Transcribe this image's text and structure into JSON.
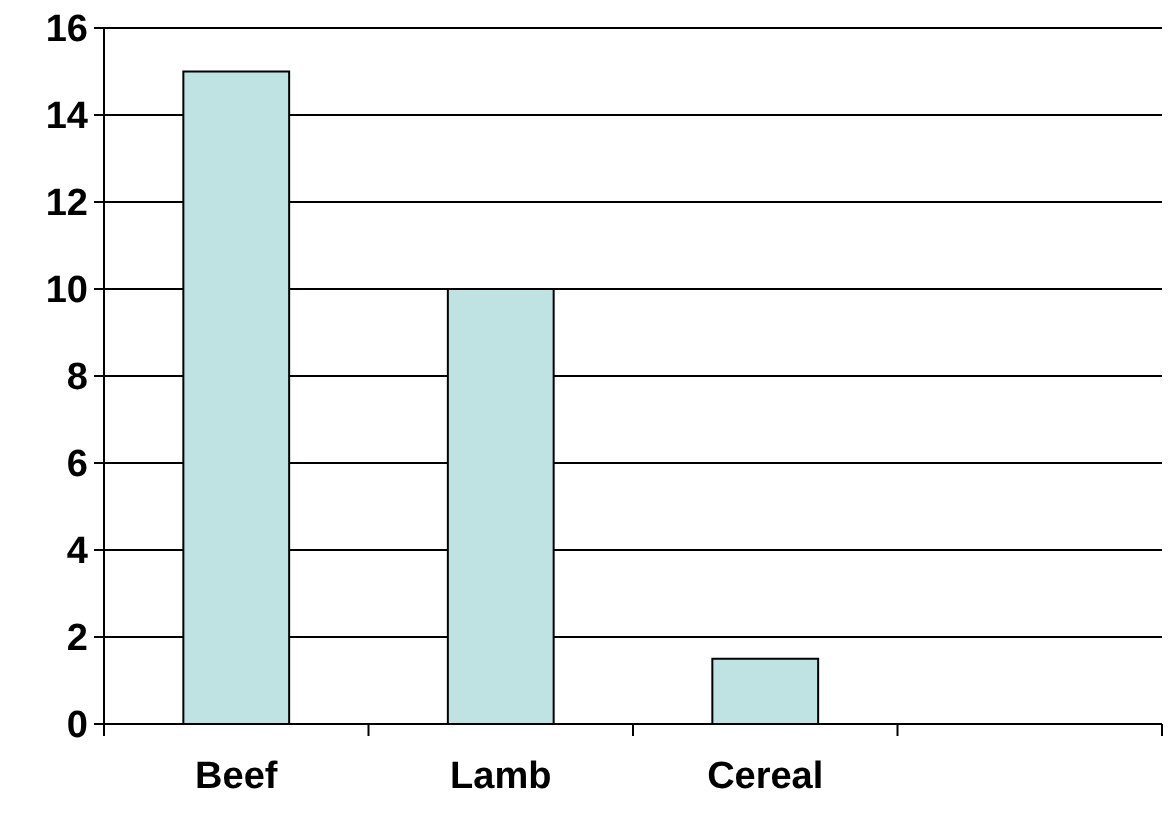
{
  "chart_data": {
    "type": "bar",
    "categories": [
      "Beef",
      "Lamb",
      "Cereal",
      null
    ],
    "values": [
      15,
      10,
      1.5,
      null
    ],
    "color": "#bfe3e3",
    "ylim": [
      0,
      16
    ],
    "yticks": [
      0,
      2,
      4,
      6,
      8,
      10,
      12,
      14,
      16
    ],
    "grid": "y"
  }
}
